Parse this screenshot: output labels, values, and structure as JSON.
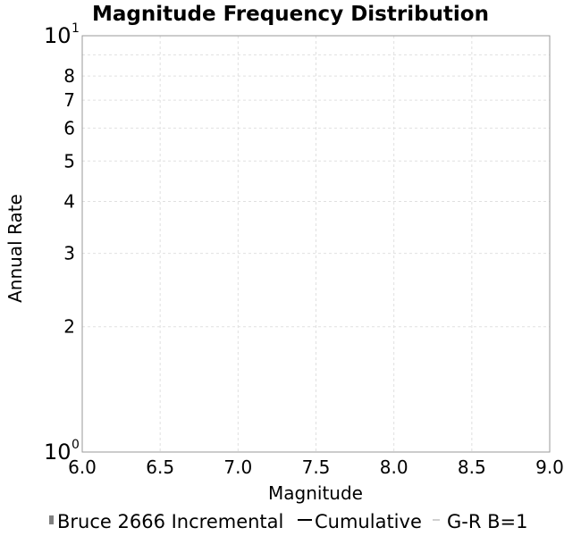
{
  "chart_data": {
    "type": "line",
    "title": "Magnitude Frequency Distribution",
    "xlabel": "Magnitude",
    "ylabel": "Annual Rate",
    "xlim": [
      6.0,
      9.0
    ],
    "ylim": [
      1,
      10
    ],
    "y_scale": "log",
    "grid": true,
    "x_ticks": [
      "6.0",
      "6.5",
      "7.0",
      "7.5",
      "8.0",
      "8.5",
      "9.0"
    ],
    "y_minor_ticks": [
      {
        "value": 2,
        "label": "2"
      },
      {
        "value": 3,
        "label": "3"
      },
      {
        "value": 4,
        "label": "4"
      },
      {
        "value": 5,
        "label": "5"
      },
      {
        "value": 6,
        "label": "6"
      },
      {
        "value": 7,
        "label": "7"
      },
      {
        "value": 8,
        "label": "8"
      }
    ],
    "y_major_ticks": [
      {
        "value": 1,
        "base": "10",
        "exp": "0"
      },
      {
        "value": 10,
        "base": "10",
        "exp": "1"
      }
    ],
    "legend_position": "bottom",
    "legend": [
      {
        "label": "Bruce 2666 Incremental",
        "style": "bar",
        "color": "#808080"
      },
      {
        "label": "Cumulative",
        "style": "line",
        "color": "#000000"
      },
      {
        "label": "G-R B=1",
        "style": "dash",
        "color": "#c0c0c0"
      }
    ],
    "series": []
  }
}
